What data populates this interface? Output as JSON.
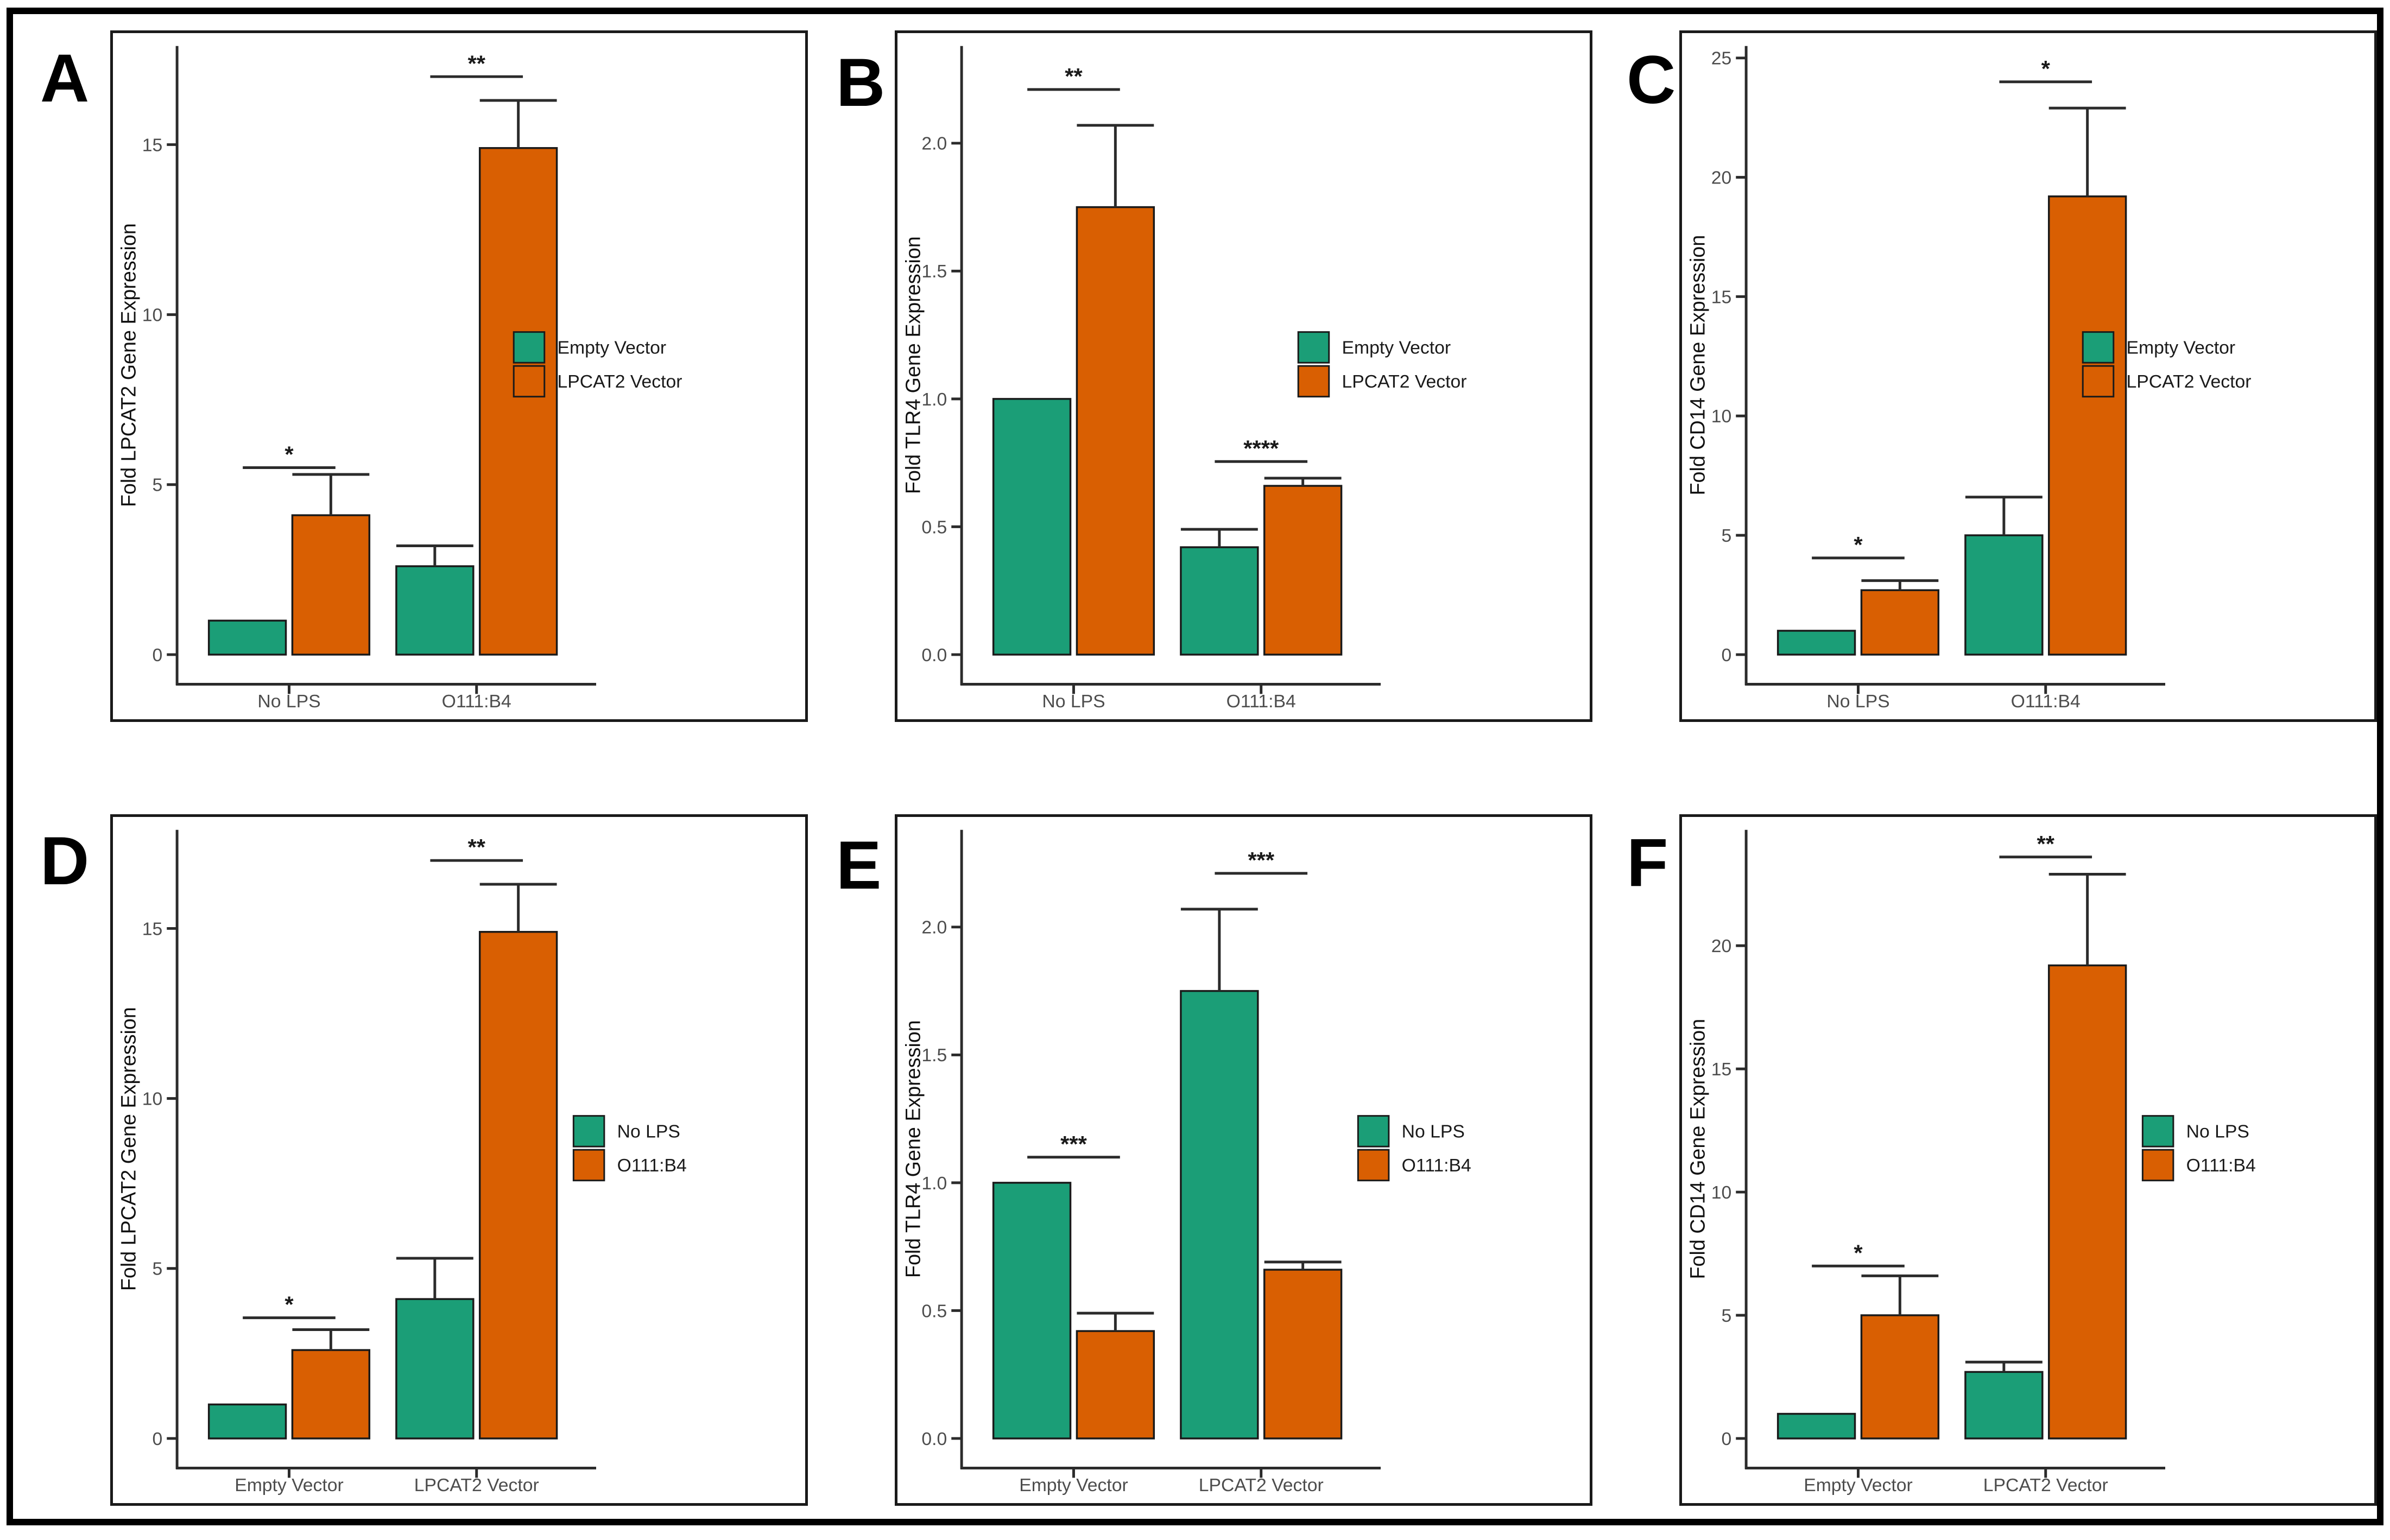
{
  "figure": {
    "background": "#ffffff",
    "frame_color": "#000000",
    "series_colors": {
      "green": "#1B9E77",
      "orange": "#D95F02"
    }
  },
  "chart_data": [
    {
      "type": "bar",
      "panel_label": "A",
      "ylabel": "Fold LPCAT2 Gene Expression",
      "categories": [
        "No LPS",
        "O111:B4"
      ],
      "legend_entries": [
        "Empty Vector",
        "LPCAT2 Vector"
      ],
      "legend_position": "right-center",
      "yticks": [
        0,
        5,
        10,
        15
      ],
      "ytick_decimals": 0,
      "ylim": [
        0,
        17.9
      ],
      "grid": "off",
      "series": [
        {
          "name": "Empty Vector",
          "color": "#1B9E77",
          "values": [
            1.0,
            2.6
          ],
          "error_upper": [
            null,
            3.2
          ]
        },
        {
          "name": "LPCAT2 Vector",
          "color": "#D95F02",
          "values": [
            4.1,
            14.9
          ],
          "error_upper": [
            5.3,
            16.3
          ]
        }
      ],
      "significance": [
        {
          "pair_index": 0,
          "label": "*",
          "height": 5.5
        },
        {
          "pair_index": 1,
          "label": "**",
          "height": 17.0
        }
      ]
    },
    {
      "type": "bar",
      "panel_label": "B",
      "ylabel": "Fold TLR4 Gene Expression",
      "categories": [
        "No LPS",
        "O111:B4"
      ],
      "legend_entries": [
        "Empty Vector",
        "LPCAT2 Vector"
      ],
      "legend_position": "right-center",
      "yticks": [
        0.0,
        0.5,
        1.0,
        1.5,
        2.0
      ],
      "ytick_decimals": 1,
      "ylim": [
        0,
        2.38
      ],
      "grid": "off",
      "series": [
        {
          "name": "Empty Vector",
          "color": "#1B9E77",
          "values": [
            1.0,
            0.42
          ],
          "error_upper": [
            null,
            0.49
          ]
        },
        {
          "name": "LPCAT2 Vector",
          "color": "#D95F02",
          "values": [
            1.75,
            0.66
          ],
          "error_upper": [
            2.07,
            0.69
          ]
        }
      ],
      "significance": [
        {
          "pair_index": 0,
          "label": "**",
          "height": 2.21
        },
        {
          "pair_index": 1,
          "label": "****",
          "height": 0.755
        }
      ]
    },
    {
      "type": "bar",
      "panel_label": "C",
      "ylabel": "Fold CD14 Gene Expression",
      "categories": [
        "No LPS",
        "O111:B4"
      ],
      "legend_entries": [
        "Empty Vector",
        "LPCAT2 Vector"
      ],
      "legend_position": "right-center",
      "yticks": [
        0,
        5,
        10,
        15,
        20,
        25
      ],
      "ytick_decimals": 0,
      "ylim": [
        0,
        25.5
      ],
      "grid": "off",
      "series": [
        {
          "name": "Empty Vector",
          "color": "#1B9E77",
          "values": [
            1.0,
            5.0
          ],
          "error_upper": [
            null,
            6.6
          ]
        },
        {
          "name": "LPCAT2 Vector",
          "color": "#D95F02",
          "values": [
            2.7,
            19.2
          ],
          "error_upper": [
            3.1,
            22.9
          ]
        }
      ],
      "significance": [
        {
          "pair_index": 0,
          "label": "*",
          "height": 4.05
        },
        {
          "pair_index": 1,
          "label": "*",
          "height": 24.0
        }
      ]
    },
    {
      "type": "bar",
      "panel_label": "D",
      "ylabel": "Fold LPCAT2 Gene Expression",
      "categories": [
        "Empty Vector",
        "LPCAT2 Vector"
      ],
      "legend_entries": [
        "No LPS",
        "O111:B4"
      ],
      "legend_position": "right-center",
      "yticks": [
        0,
        5,
        10,
        15
      ],
      "ytick_decimals": 0,
      "ylim": [
        0,
        17.9
      ],
      "grid": "off",
      "series": [
        {
          "name": "No LPS",
          "color": "#1B9E77",
          "values": [
            1.0,
            4.1
          ],
          "error_upper": [
            null,
            5.3
          ]
        },
        {
          "name": "O111:B4",
          "color": "#D95F02",
          "values": [
            2.6,
            14.9
          ],
          "error_upper": [
            3.2,
            16.3
          ]
        }
      ],
      "significance": [
        {
          "pair_index": 0,
          "label": "*",
          "height": 3.55
        },
        {
          "pair_index": 1,
          "label": "**",
          "height": 17.0
        }
      ]
    },
    {
      "type": "bar",
      "panel_label": "E",
      "ylabel": "Fold TLR4 Gene Expression",
      "categories": [
        "Empty Vector",
        "LPCAT2 Vector"
      ],
      "legend_entries": [
        "No LPS",
        "O111:B4"
      ],
      "legend_position": "right-center",
      "yticks": [
        0.0,
        0.5,
        1.0,
        1.5,
        2.0
      ],
      "ytick_decimals": 1,
      "ylim": [
        0,
        2.38
      ],
      "grid": "off",
      "series": [
        {
          "name": "No LPS",
          "color": "#1B9E77",
          "values": [
            1.0,
            1.75
          ],
          "error_upper": [
            null,
            2.07
          ]
        },
        {
          "name": "O111:B4",
          "color": "#D95F02",
          "values": [
            0.42,
            0.66
          ],
          "error_upper": [
            0.49,
            0.69
          ]
        }
      ],
      "significance": [
        {
          "pair_index": 0,
          "label": "***",
          "height": 1.1
        },
        {
          "pair_index": 1,
          "label": "***",
          "height": 2.21
        }
      ]
    },
    {
      "type": "bar",
      "panel_label": "F",
      "ylabel": "Fold CD14 Gene Expression",
      "categories": [
        "Empty Vector",
        "LPCAT2 Vector"
      ],
      "legend_entries": [
        "No LPS",
        "O111:B4"
      ],
      "legend_position": "right-center",
      "yticks": [
        0,
        5,
        10,
        15,
        20
      ],
      "ytick_decimals": 0,
      "ylim": [
        0,
        24.7
      ],
      "grid": "off",
      "series": [
        {
          "name": "No LPS",
          "color": "#1B9E77",
          "values": [
            1.0,
            2.7
          ],
          "error_upper": [
            null,
            3.1
          ]
        },
        {
          "name": "O111:B4",
          "color": "#D95F02",
          "values": [
            5.0,
            19.2
          ],
          "error_upper": [
            6.6,
            22.9
          ]
        }
      ],
      "significance": [
        {
          "pair_index": 0,
          "label": "*",
          "height": 7.0
        },
        {
          "pair_index": 1,
          "label": "**",
          "height": 23.6
        }
      ]
    }
  ]
}
